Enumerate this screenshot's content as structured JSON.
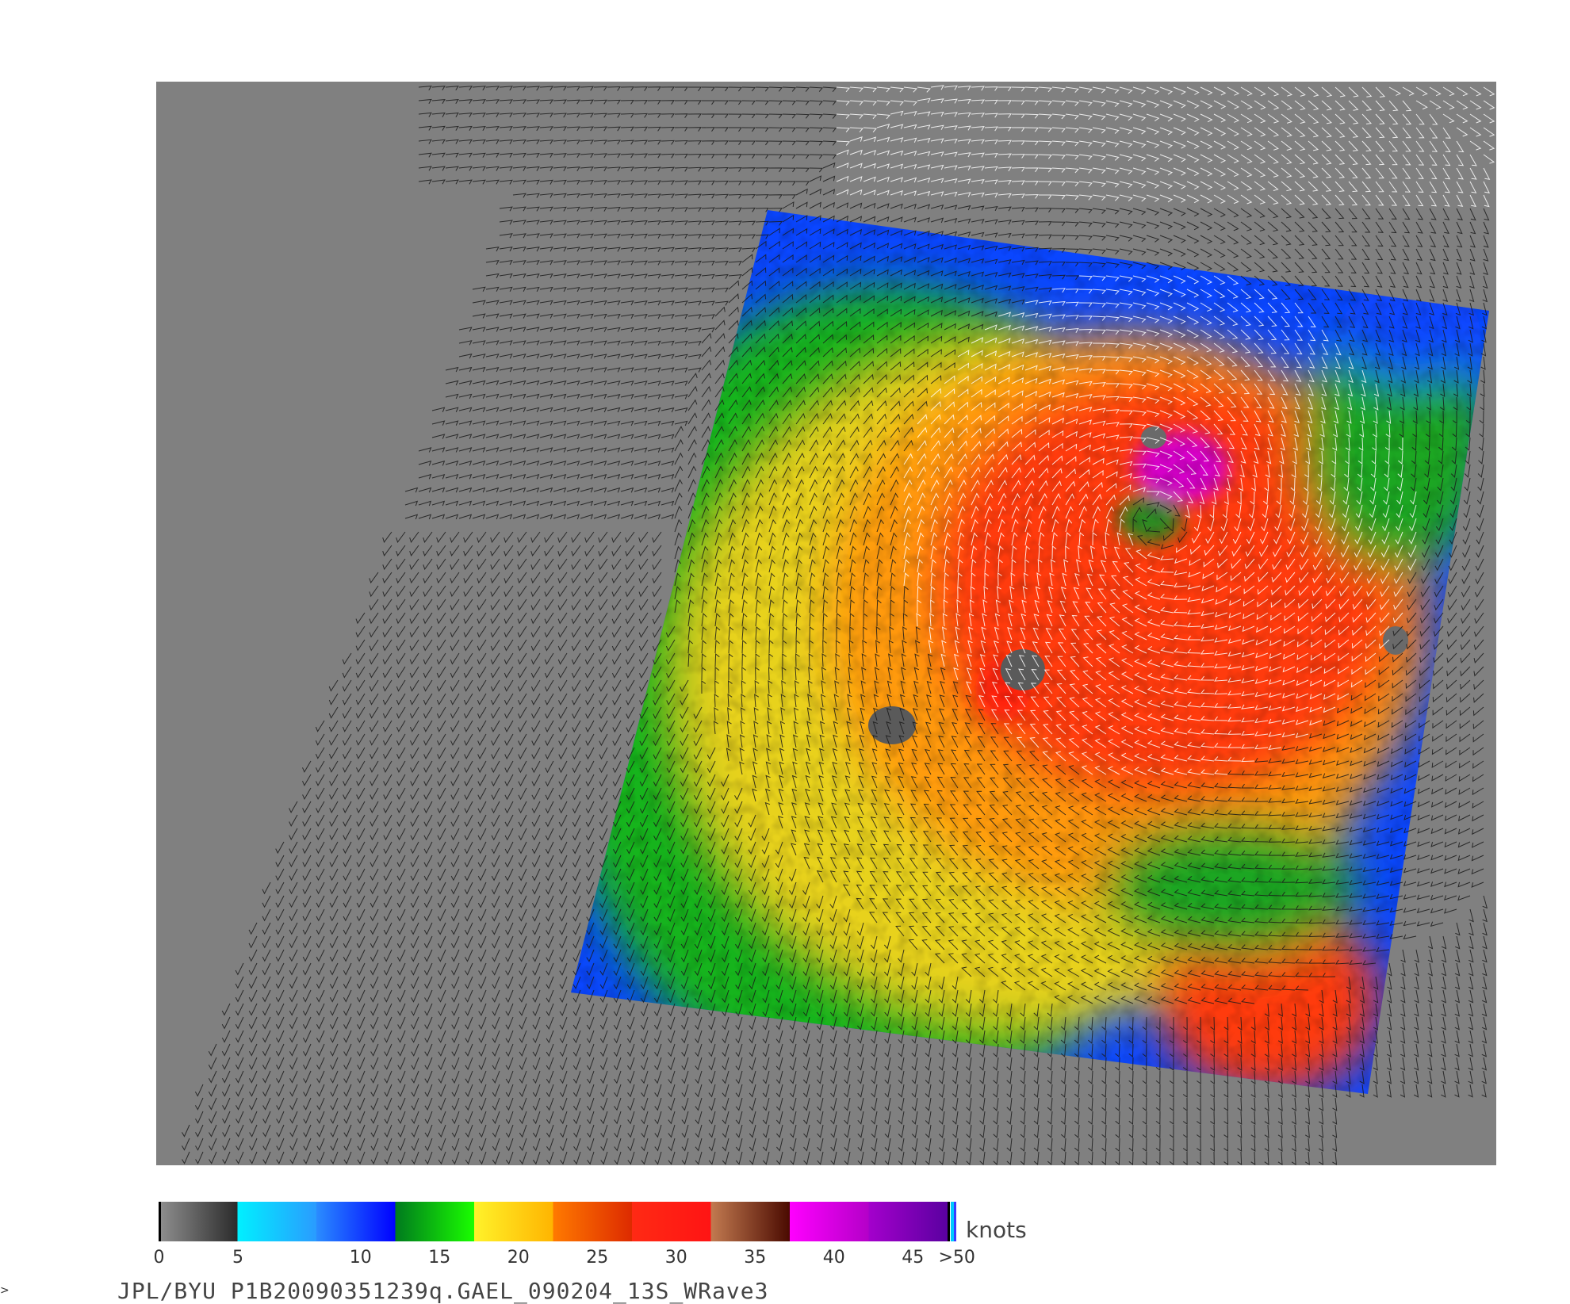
{
  "colors": {
    "background_land": "#808080",
    "page": "#ffffff",
    "barb_dark": "#1a1a1a",
    "barb_light": "#ffffff"
  },
  "legend": {
    "units": "knots",
    "tick_labels": [
      "0",
      "5",
      "10",
      "15",
      "20",
      "25",
      "30",
      "35",
      "40",
      "45",
      ">50"
    ],
    "bins": [
      {
        "range": [
          0,
          5
        ],
        "start": "#909090",
        "end": "#2a2a2a"
      },
      {
        "range": [
          5,
          10
        ],
        "start": "#00f0ff",
        "end": "#2a9bff"
      },
      {
        "range": [
          10,
          15
        ],
        "start": "#2a8cff",
        "end": "#0000ff"
      },
      {
        "range": [
          15,
          20
        ],
        "start": "#007a1e",
        "end": "#1aff00"
      },
      {
        "range": [
          20,
          25
        ],
        "start": "#fff22a",
        "end": "#ffb400"
      },
      {
        "range": [
          25,
          30
        ],
        "start": "#ff7a00",
        "end": "#dd2a00"
      },
      {
        "range": [
          30,
          35
        ],
        "start": "#ff2a14",
        "end": "#ff1414"
      },
      {
        "range": [
          35,
          40
        ],
        "start": "#c27a50",
        "end": "#4a0a00"
      },
      {
        "range": [
          40,
          45
        ],
        "start": "#ff00ff",
        "end": "#b400c8"
      },
      {
        "range": [
          45,
          50
        ],
        "start": "#a400cc",
        "end": "#5a00a0"
      }
    ]
  },
  "footer": {
    "caption": "JPL/BYU  P1B20090351239q.GAEL_090204_13S_WRave3"
  },
  "corner_mark": ">"
}
